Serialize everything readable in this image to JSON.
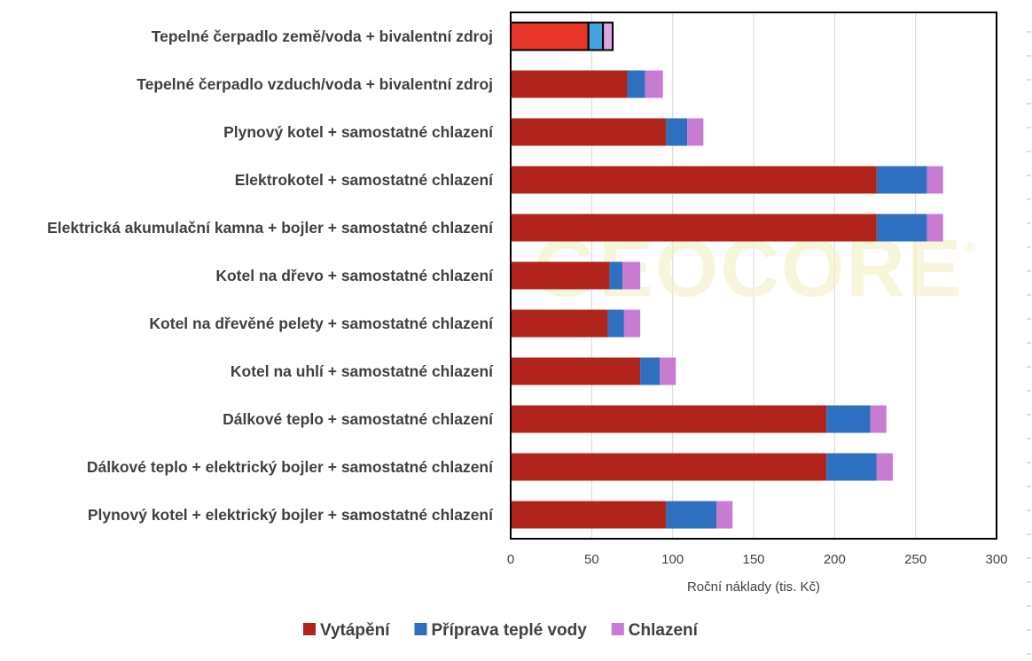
{
  "chart_data": {
    "type": "bar",
    "orientation": "horizontal",
    "stacked": true,
    "categories": [
      "Tepelné čerpadlo země/voda + bivalentní zdroj",
      "Tepelné čerpadlo vzduch/voda + bivalentní zdroj",
      "Plynový kotel + samostatné chlazení",
      "Elektrokotel + samostatné chlazení",
      "Elektrická akumulační kamna + bojler + samostatné chlazení",
      "Kotel na dřevo + samostatné chlazení",
      "Kotel na dřevěné pelety + samostatné chlazení",
      "Kotel na uhlí + samostatné chlazení",
      "Dálkové teplo + samostatné chlazení",
      "Dálkové teplo + elektrický bojler + samostatné chlazení",
      "Plynový kotel + elektrický bojler + samostatné chlazení"
    ],
    "series": [
      {
        "name": "Vytápění",
        "color": "#b0241c",
        "values": [
          48,
          72,
          96,
          226,
          226,
          61,
          60,
          80,
          195,
          195,
          96
        ]
      },
      {
        "name": "Příprava teplé vody",
        "color": "#2e6fc0",
        "values": [
          9,
          11,
          13,
          31,
          31,
          8,
          10,
          12,
          27,
          31,
          31
        ]
      },
      {
        "name": "Chlazení",
        "color": "#c77cd2",
        "values": [
          6,
          11,
          10,
          10,
          10,
          11,
          10,
          10,
          10,
          10,
          10
        ]
      }
    ],
    "highlight": {
      "category_index": 0,
      "colors": [
        "#e8352a",
        "#43a4e0",
        "#dca6e4"
      ],
      "outline": "#000000"
    },
    "xlabel": "Roční náklady (tis. Kč)",
    "xlim": [
      0,
      300
    ],
    "xticks": [
      0,
      50,
      100,
      150,
      200,
      250,
      300
    ],
    "grid": "vertical",
    "legend_position": "bottom",
    "watermark": "GEOCORE"
  }
}
